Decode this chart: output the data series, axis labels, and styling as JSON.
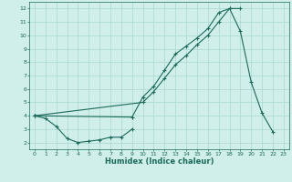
{
  "xlabel": "Humidex (Indice chaleur)",
  "x_values": [
    0,
    1,
    2,
    3,
    4,
    5,
    6,
    7,
    8,
    9,
    10,
    11,
    12,
    13,
    14,
    15,
    16,
    17,
    18,
    19,
    20,
    21,
    22,
    23
  ],
  "line1_y": [
    4.0,
    3.8,
    3.2,
    2.3,
    2.0,
    2.1,
    2.2,
    2.4,
    2.4,
    3.0,
    null,
    null,
    null,
    null,
    null,
    null,
    null,
    null,
    null,
    null,
    null,
    null,
    null,
    null
  ],
  "line2_y": [
    4.0,
    null,
    null,
    null,
    null,
    null,
    null,
    null,
    null,
    3.9,
    5.4,
    6.2,
    7.4,
    8.6,
    9.2,
    9.8,
    10.5,
    11.7,
    12.0,
    10.3,
    6.5,
    4.2,
    2.8,
    null
  ],
  "line3_y": [
    4.0,
    null,
    null,
    null,
    null,
    null,
    null,
    null,
    null,
    null,
    5.0,
    5.8,
    6.8,
    7.8,
    8.5,
    9.3,
    10.0,
    11.0,
    12.0,
    12.0,
    null,
    null,
    null,
    null
  ],
  "line_color": "#1a6b5a",
  "bg_color": "#d0eeea",
  "grid_color": "#a8d8d0",
  "xlim": [
    -0.5,
    23.5
  ],
  "ylim": [
    1.5,
    12.5
  ],
  "yticks": [
    2,
    3,
    4,
    5,
    6,
    7,
    8,
    9,
    10,
    11,
    12
  ],
  "xticks": [
    0,
    1,
    2,
    3,
    4,
    5,
    6,
    7,
    8,
    9,
    10,
    11,
    12,
    13,
    14,
    15,
    16,
    17,
    18,
    19,
    20,
    21,
    22,
    23
  ],
  "xlabel_fontsize": 6.0,
  "tick_fontsize": 4.5,
  "linewidth": 0.8,
  "markersize": 2.5,
  "markeredgewidth": 0.8
}
